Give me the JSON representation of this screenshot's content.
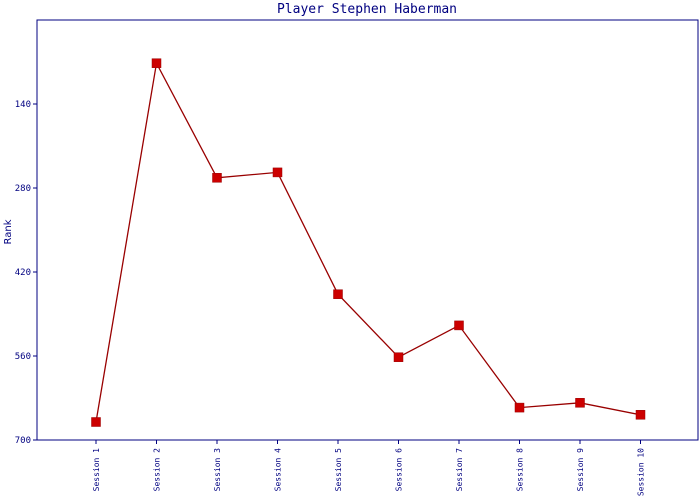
{
  "chart_data": {
    "type": "line",
    "title": "Player Stephen Haberman",
    "xlabel": "",
    "ylabel": "Rank",
    "categories": [
      "Session 1",
      "Session 2",
      "Session 3",
      "Session 4",
      "Session 5",
      "Session 6",
      "Session 7",
      "Session 8",
      "Session 9",
      "Session 10"
    ],
    "series": [
      {
        "values": [
          670,
          72,
          263,
          254,
          457,
          562,
          509,
          646,
          638,
          658
        ]
      }
    ],
    "ylim": [
      0,
      700
    ],
    "y_inverted": true,
    "yticks": [
      140,
      280,
      420,
      560,
      700
    ],
    "grid": false,
    "colors": {
      "line": "#990000",
      "marker": "#CC0000",
      "axis": "#000080",
      "text": "#000080"
    }
  }
}
